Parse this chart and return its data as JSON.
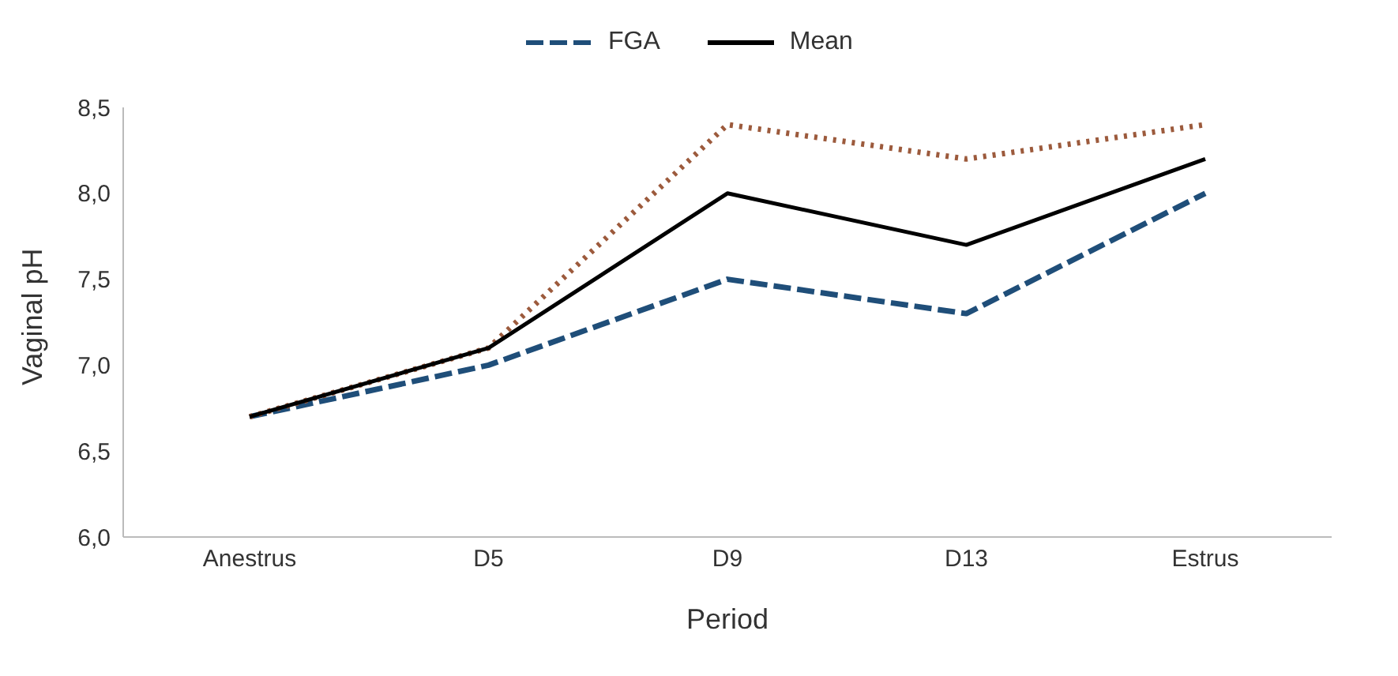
{
  "chart_data": {
    "type": "line",
    "xlabel": "Period",
    "ylabel": "Vaginal pH",
    "categories": [
      "Anestrus",
      "D5",
      "D9",
      "D13",
      "Estrus"
    ],
    "series": [
      {
        "name": "FGA",
        "color": "#1f4e79",
        "line_style": "dashed",
        "values": [
          6.7,
          7.0,
          7.5,
          7.3,
          8.0
        ]
      },
      {
        "color": "#9c5a3c",
        "line_style": "dotted",
        "values": [
          6.7,
          7.1,
          8.4,
          8.2,
          8.4
        ]
      },
      {
        "name": "Mean",
        "color": "#000000",
        "line_style": "solid",
        "values": [
          6.7,
          7.1,
          8.0,
          7.7,
          8.2
        ]
      }
    ],
    "ylim": [
      6.0,
      8.5
    ],
    "yticks": [
      {
        "value": 6.0,
        "label": "6,0"
      },
      {
        "value": 6.5,
        "label": "6,5"
      },
      {
        "value": 7.0,
        "label": "7,0"
      },
      {
        "value": 7.5,
        "label": "7,5"
      },
      {
        "value": 8.0,
        "label": "8,0"
      },
      {
        "value": 8.5,
        "label": "8,5"
      }
    ],
    "grid": false,
    "legend": "top",
    "marker": "none"
  }
}
